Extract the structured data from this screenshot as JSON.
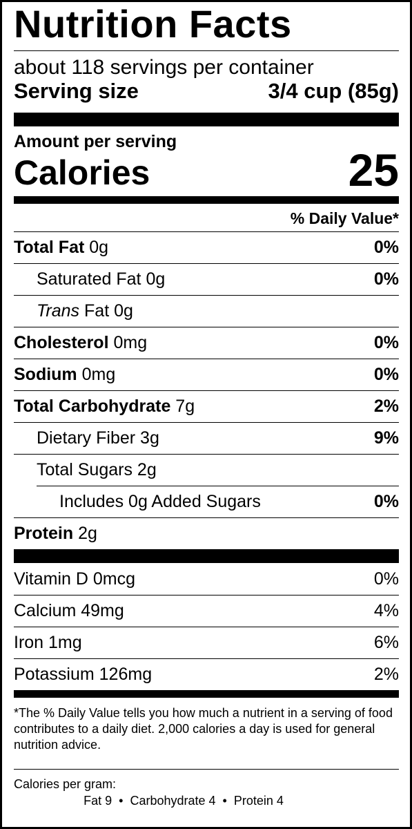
{
  "title": "Nutrition Facts",
  "servings": "about 118 servings per container",
  "serving_size": {
    "label": "Serving size",
    "value": "3/4 cup (85g)"
  },
  "amount_per_serving": "Amount per serving",
  "calories": {
    "label": "Calories",
    "value": "25"
  },
  "dv_header": "% Daily Value*",
  "nutrients": [
    {
      "name": "Total Fat",
      "amount": "0g",
      "dv": "0%"
    },
    {
      "name": "Saturated Fat",
      "amount": "0g",
      "dv": "0%"
    },
    {
      "name_italic": "Trans",
      "name": "Fat",
      "amount": "0g",
      "dv": ""
    },
    {
      "name": "Cholesterol",
      "amount": "0mg",
      "dv": "0%"
    },
    {
      "name": "Sodium",
      "amount": "0mg",
      "dv": "0%"
    },
    {
      "name": "Total Carbohydrate",
      "amount": "7g",
      "dv": "2%"
    },
    {
      "name": "Dietary Fiber",
      "amount": "3g",
      "dv": "9%"
    },
    {
      "name": "Total Sugars",
      "amount": "2g",
      "dv": ""
    },
    {
      "name": "Includes 0g Added Sugars",
      "amount": "",
      "dv": "0%"
    },
    {
      "name": "Protein",
      "amount": "2g",
      "dv": ""
    }
  ],
  "vitamins": [
    {
      "name": "Vitamin D 0mcg",
      "dv": "0%"
    },
    {
      "name": "Calcium 49mg",
      "dv": "4%"
    },
    {
      "name": "Iron 1mg",
      "dv": "6%"
    },
    {
      "name": "Potassium 126mg",
      "dv": "2%"
    }
  ],
  "footnote": "*The % Daily Value tells you how much a nutrient in a serving of food contributes to a daily diet. 2,000 calories a day is used for general nutrition advice.",
  "calories_per_gram": {
    "label": "Calories per gram:",
    "values": "Fat 9  •  Carbohydrate 4  •  Protein 4"
  }
}
